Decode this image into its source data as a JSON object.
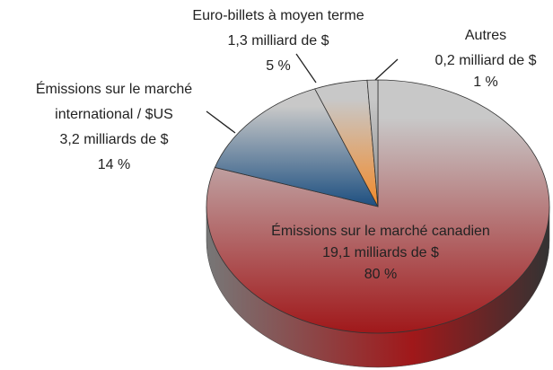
{
  "chart_data": {
    "type": "pie3d",
    "categories": [
      [
        "Émissions sur le marché canadien"
      ],
      [
        "Émissions sur le marché",
        "international / $US"
      ],
      [
        "Euro-billets à moyen terme"
      ],
      [
        "Autres"
      ]
    ],
    "values": [
      80,
      14,
      5,
      1
    ],
    "value_labels": [
      "80 %",
      "14 %",
      "5 %",
      "1 %"
    ],
    "amounts": [
      19.1,
      3.2,
      1.3,
      0.2
    ],
    "amount_labels": [
      "19,1 milliards de $",
      "3,2 milliards de $",
      "1,3 milliard de $",
      "0,2 milliard de $"
    ],
    "colors": [
      "#a0181a",
      "#1d4f80",
      "#f28a2a",
      "#8a8a8a"
    ]
  }
}
